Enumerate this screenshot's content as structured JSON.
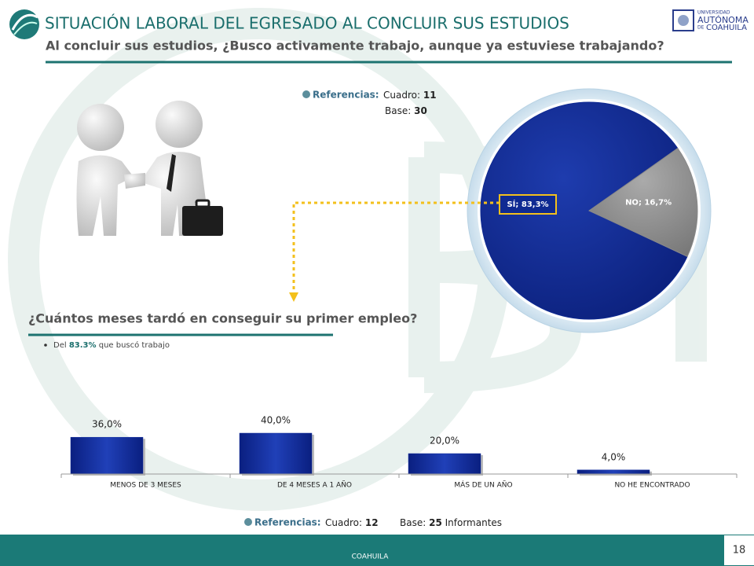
{
  "header": {
    "title": "SITUACIÓN LABORAL DEL EGRESADO AL CONCLUIR SUS ESTUDIOS",
    "subtitle": "Al concluir sus estudios, ¿Busco activamente trabajo, aunque ya estuviese trabajando?"
  },
  "logo": {
    "line1": "UNIVERSIDAD",
    "line2": "AUTÓNOMA",
    "line3a": "DE",
    "line3b": "COAHUILA"
  },
  "references_top": {
    "label": "Referencias:",
    "cuadro_label": "Cuadro:",
    "cuadro": "11",
    "base_label": "Base:",
    "base": "30"
  },
  "question": "¿Cuántos meses  tardó en conseguir su primer empleo?",
  "note": {
    "before": "Del",
    "value": "83.3%",
    "after": "que buscó trabajo"
  },
  "references_bottom": {
    "label": "Referencias:",
    "cuadro_label": "Cuadro:",
    "cuadro": "12",
    "base_label": "Base:",
    "base": "25",
    "base_unit": "Informantes"
  },
  "footer": {
    "text": "COAHUILA",
    "page": "18"
  },
  "chart_data": [
    {
      "type": "pie",
      "categories": [
        "SÍ",
        "NO"
      ],
      "values": [
        83.3,
        16.7
      ],
      "value_labels": [
        "83,3%",
        "16,7%"
      ],
      "colors": [
        "#0f2a92",
        "#8a8a8a"
      ]
    },
    {
      "type": "bar",
      "categories": [
        "MENOS DE 3 MESES",
        "DE 4 MESES A  1 AÑO",
        "MÁS DE UN AÑO",
        "NO HE ENCONTRADO"
      ],
      "values": [
        36,
        40,
        20,
        4
      ],
      "value_labels": [
        "36,0%",
        "40,0%",
        "20,0%",
        "4,0%"
      ],
      "color": "#14309e",
      "ylim": [
        0,
        100
      ]
    }
  ]
}
